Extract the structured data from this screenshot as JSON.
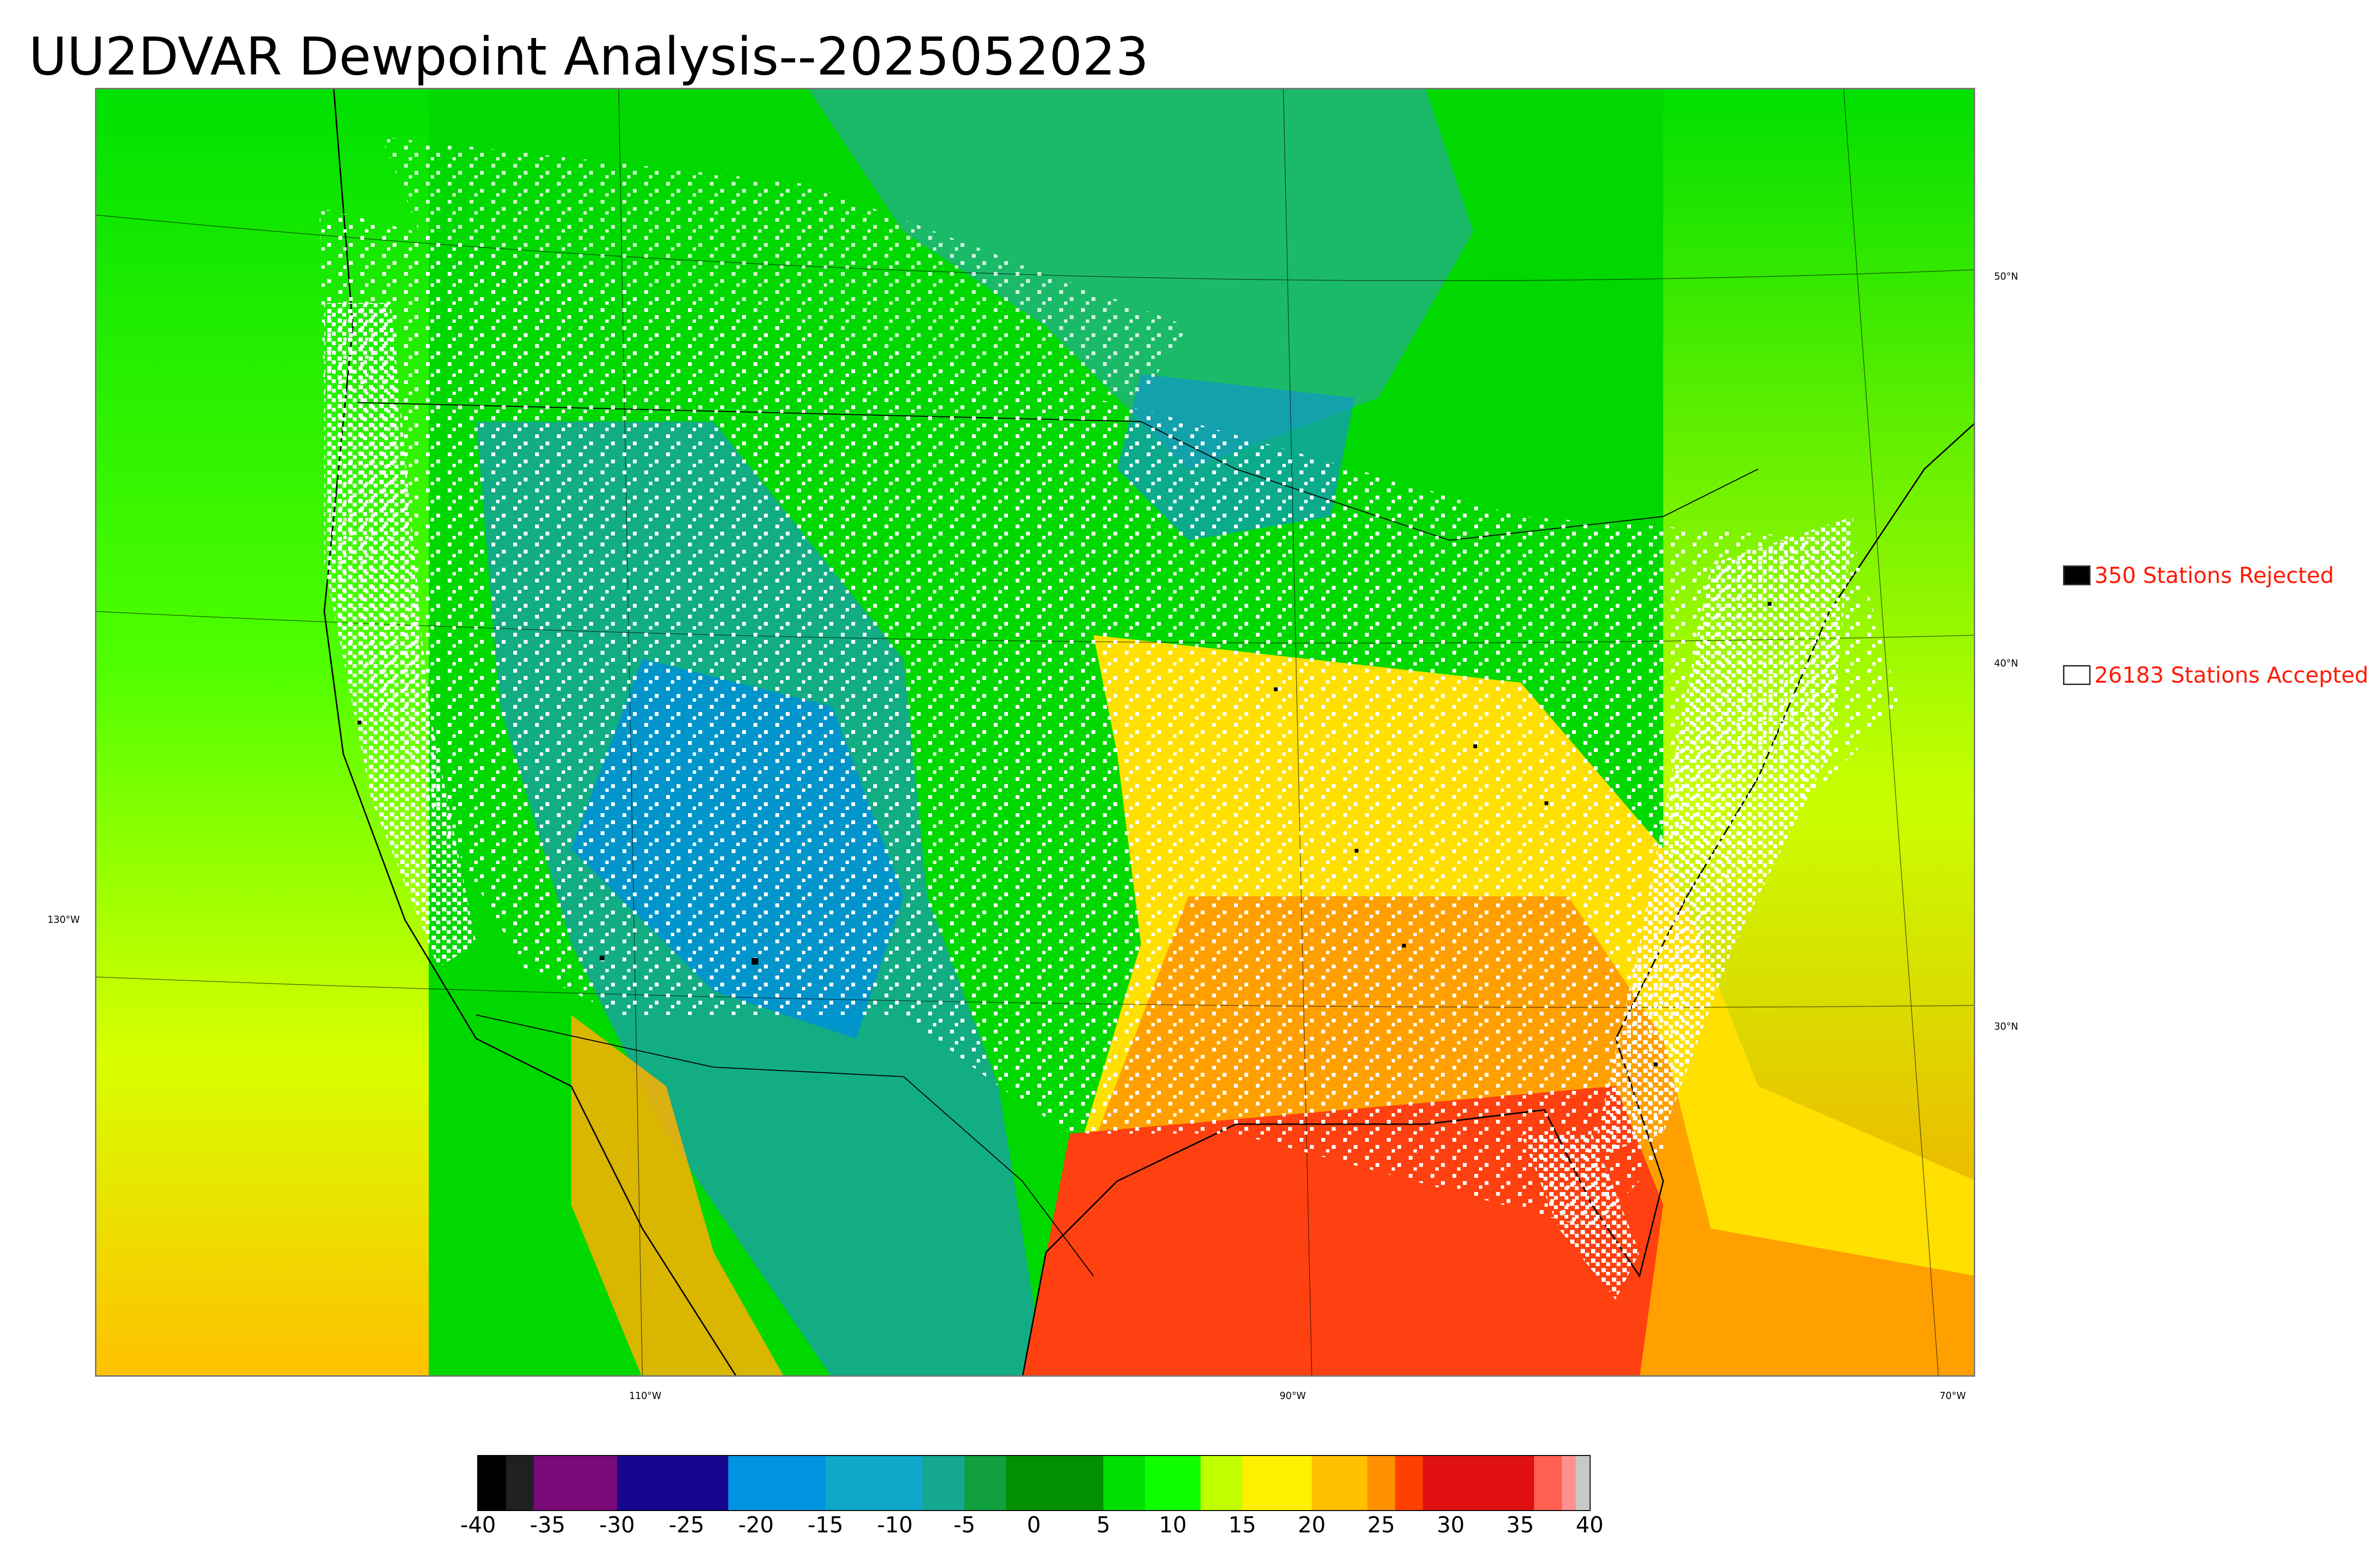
{
  "title": "UU2DVAR Dewpoint Analysis--2025052023",
  "legend": {
    "rejected": {
      "label": "350 Stations Rejected",
      "color": "#000000"
    },
    "accepted": {
      "label": "26183 Stations Accepted",
      "color": "#ffffff"
    }
  },
  "map": {
    "type": "filled-contour-map",
    "region": "Contiguous United States",
    "lon_labels": [
      "110°W",
      "90°W",
      "70°W"
    ],
    "lat_labels": [
      "50°N",
      "40°N",
      "30°N"
    ],
    "left_lon_label": "130°W"
  },
  "colorbar": {
    "ticks": [
      "-40",
      "-35",
      "-30",
      "-25",
      "-20",
      "-15",
      "-10",
      "-5",
      "0",
      "5",
      "10",
      "15",
      "20",
      "25",
      "30",
      "35",
      "40"
    ],
    "min": -40,
    "max": 40,
    "colors": {
      "-40": "#000000",
      "-38": "#202020",
      "-36": "#7a0a78",
      "-30": "#16068f",
      "-22": "#0094e0",
      "-15": "#10a8c8",
      "-8": "#14a890",
      "-5": "#10a040",
      "-2": "#009000",
      "5": "#00e000",
      "8": "#10ff00",
      "12": "#c0ff00",
      "15": "#fff000",
      "20": "#ffc000",
      "24": "#ff9000",
      "26": "#ff4000",
      "28": "#e01010",
      "36": "#ff6050",
      "38": "#ff9090",
      "39": "#c8c8c8"
    }
  }
}
